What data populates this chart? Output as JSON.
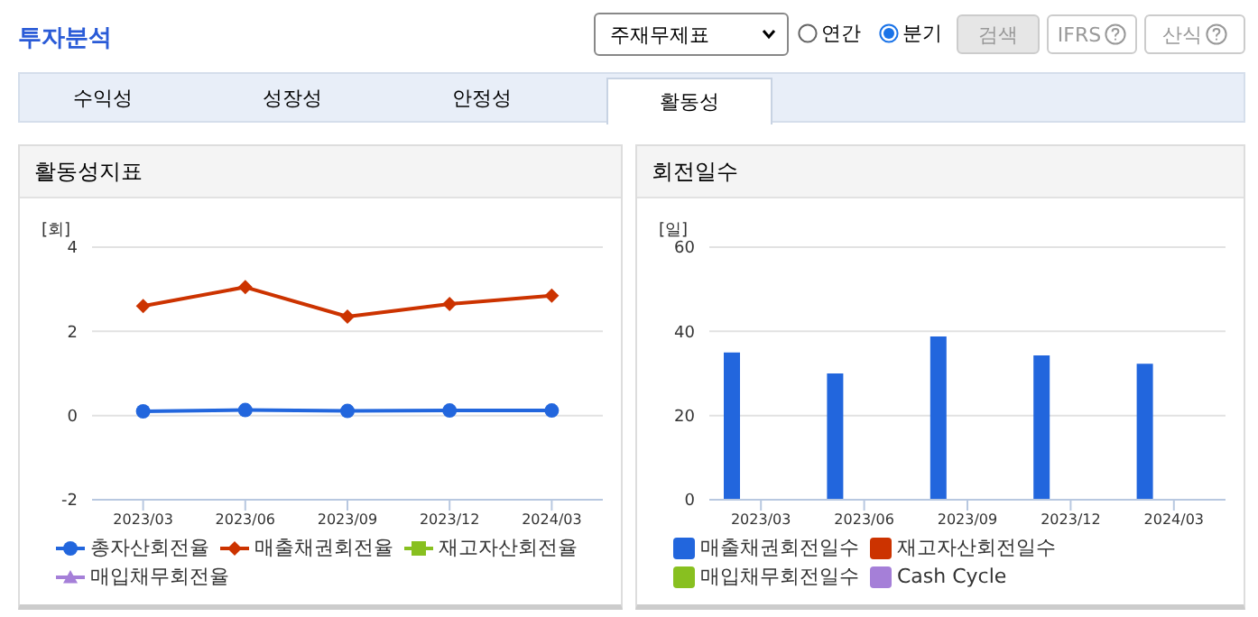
{
  "chart_data": [
    {
      "type": "other",
      "title": "투자분석",
      "annotations": [
        "주재무제표",
        "연간",
        "분기",
        "검색",
        "IFRS",
        "산식",
        "수익성",
        "성장성",
        "안정성",
        "활동성"
      ]
    },
    {
      "type": "line",
      "title": "활동성지표",
      "ylabel": "[회]",
      "categories": [
        "2023/03",
        "2023/06",
        "2023/09",
        "2023/12",
        "2024/03"
      ],
      "ylim": [
        -2,
        4
      ],
      "yticks": [
        -2,
        0,
        2,
        4
      ],
      "grid": "y",
      "legend": "bottom",
      "series": [
        {
          "name": "총자산회전율",
          "color": "#2266dd",
          "marker": "circle",
          "values": [
            0.1,
            0.13,
            0.11,
            0.12,
            0.12
          ]
        },
        {
          "name": "매출채권회전율",
          "color": "#cc3300",
          "marker": "diamond",
          "values": [
            2.6,
            3.05,
            2.35,
            2.65,
            2.85
          ]
        },
        {
          "name": "재고자산회전율",
          "color": "#88c020",
          "marker": "square",
          "values": [
            null,
            null,
            null,
            null,
            null
          ]
        },
        {
          "name": "매입채무회전율",
          "color": "#a57fd8",
          "marker": "triangle",
          "values": [
            null,
            null,
            null,
            null,
            null
          ]
        }
      ]
    },
    {
      "type": "bar",
      "title": "회전일수",
      "ylabel": "[일]",
      "categories": [
        "2023/03",
        "2023/06",
        "2023/09",
        "2023/12",
        "2024/03"
      ],
      "ylim": [
        0,
        60
      ],
      "yticks": [
        0,
        20,
        40,
        60
      ],
      "grid": "y",
      "legend": "bottom",
      "series": [
        {
          "name": "매출채권회전일수",
          "color": "#2266dd",
          "values": [
            35,
            30,
            38.8,
            34.3,
            32.3
          ]
        },
        {
          "name": "재고자산회전일수",
          "color": "#cc3300",
          "values": [
            null,
            null,
            null,
            null,
            null
          ]
        },
        {
          "name": "매입채무회전일수",
          "color": "#88c020",
          "values": [
            null,
            null,
            null,
            null,
            null
          ]
        },
        {
          "name": "Cash Cycle",
          "color": "#a57fd8",
          "values": [
            null,
            null,
            null,
            null,
            null
          ]
        }
      ]
    }
  ]
}
